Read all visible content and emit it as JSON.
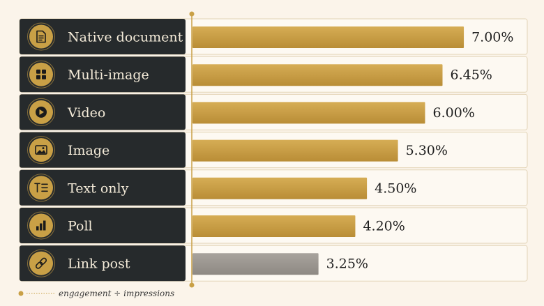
{
  "chart_data": {
    "type": "bar",
    "orientation": "horizontal",
    "categories": [
      "Native document",
      "Multi-image",
      "Video",
      "Image",
      "Text only",
      "Poll",
      "Link post"
    ],
    "icons": [
      "document-icon",
      "grid-icon",
      "play-icon",
      "image-icon",
      "text-icon",
      "bar-chart-icon",
      "link-icon"
    ],
    "values": [
      7.0,
      6.45,
      6.0,
      5.3,
      4.5,
      4.2,
      3.25
    ],
    "value_labels": [
      "7.00%",
      "6.45%",
      "6.00%",
      "5.30%",
      "4.50%",
      "4.20%",
      "3.25%"
    ],
    "xlim": [
      0,
      8.6
    ],
    "title": "",
    "xlabel": "",
    "ylabel": "",
    "grid": false,
    "colors": {
      "bar": "#c9a046",
      "bar_muted": "#9a9590",
      "label_panel": "#262a2c",
      "accent": "#c9a046",
      "background": "#fbf4ea"
    },
    "footnote": "engagement ÷ impressions"
  }
}
